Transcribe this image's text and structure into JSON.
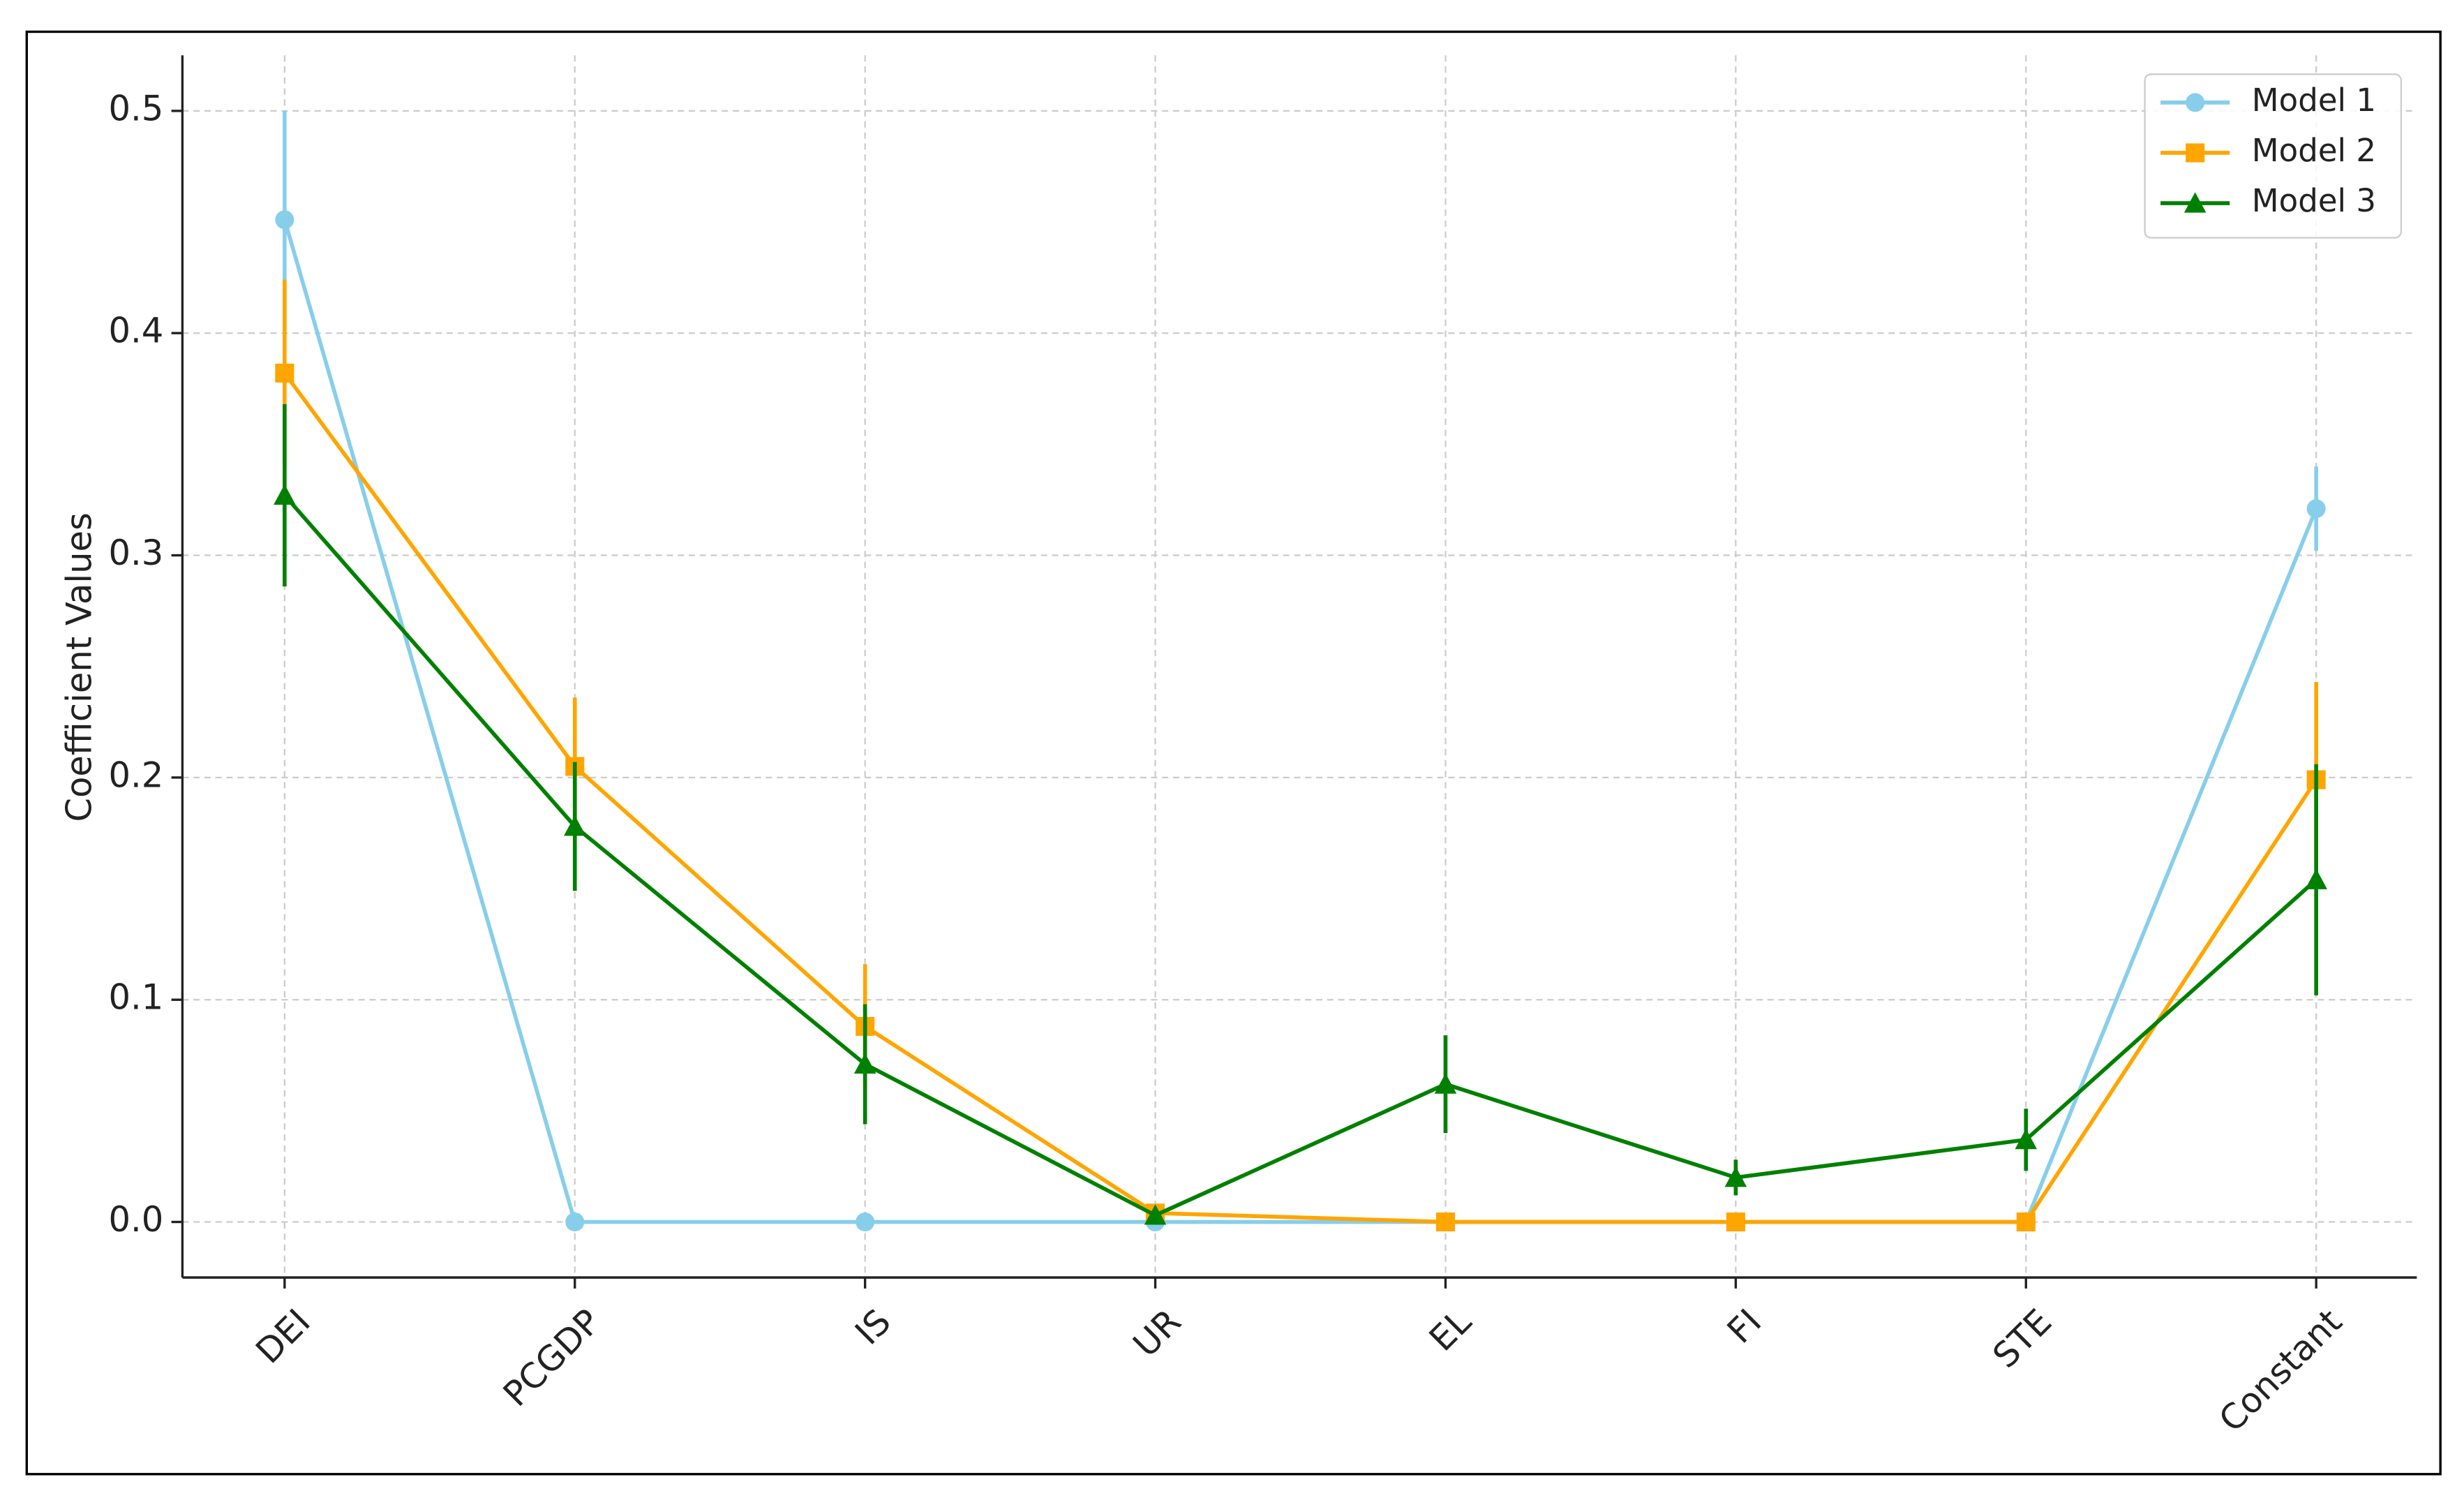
{
  "chart_data": {
    "type": "line",
    "y_label": "Coefficient Values",
    "categories": [
      "DEI",
      "PCGDP",
      "IS",
      "UR",
      "EL",
      "FI",
      "STE",
      "Constant"
    ],
    "series": [
      {
        "name": "Model 1",
        "color": "#87ceeb",
        "marker": "circle",
        "values": [
          0.451,
          0,
          0,
          0,
          0,
          0,
          0,
          0.321
        ],
        "errors": [
          0.049,
          0,
          0,
          0,
          0,
          0,
          0,
          0.019
        ]
      },
      {
        "name": "Model 2",
        "color": "#ffa500",
        "marker": "square",
        "values": [
          0.382,
          0.205,
          0.088,
          0.004,
          0,
          0,
          0,
          0.199
        ],
        "errors": [
          0.042,
          0.031,
          0.028,
          0,
          0,
          0,
          0,
          0.044
        ]
      },
      {
        "name": "Model 3",
        "color": "#008000",
        "marker": "triangle",
        "values": [
          0.327,
          0.178,
          0.071,
          0.003,
          0.062,
          0.02,
          0.037,
          0.154
        ],
        "errors": [
          0.041,
          0.029,
          0.027,
          0,
          0.022,
          0.008,
          0.014,
          0.052
        ]
      }
    ],
    "ylim": [
      -0.025,
      0.525
    ],
    "yticks": [
      {
        "value": 0,
        "label": "0.0"
      },
      0.1,
      0.2,
      0.3,
      0.4,
      0.5
    ],
    "grid": true,
    "legend": "upper right"
  }
}
